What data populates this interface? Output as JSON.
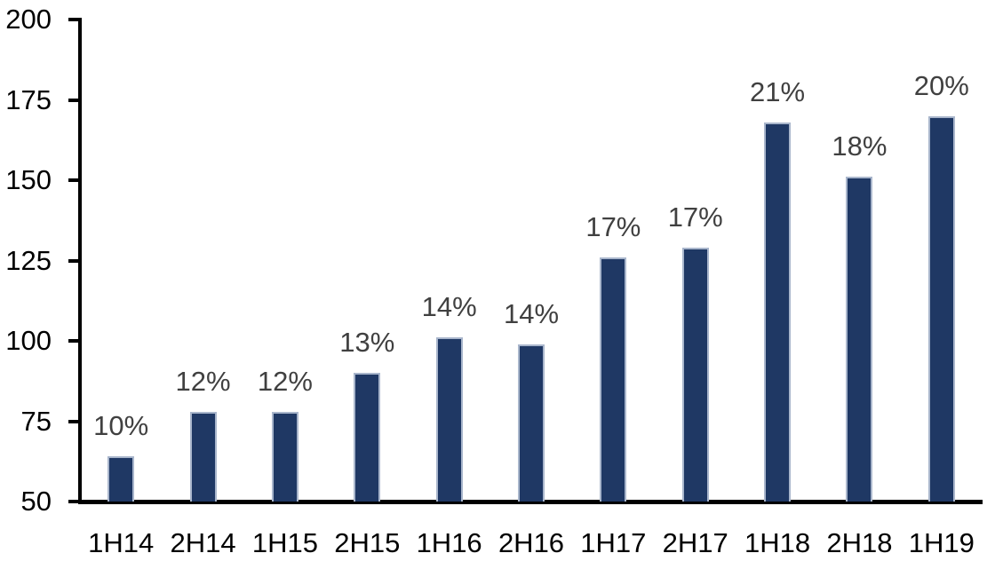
{
  "chart_data": {
    "type": "bar",
    "title": "",
    "xlabel": "",
    "ylabel": "",
    "categories": [
      "1H14",
      "2H14",
      "1H15",
      "2H15",
      "1H16",
      "2H16",
      "1H17",
      "2H17",
      "1H18",
      "2H18",
      "1H19"
    ],
    "values": [
      64,
      78,
      78,
      90,
      101,
      99,
      126,
      129,
      168,
      151,
      170
    ],
    "bar_labels": [
      "10%",
      "12%",
      "12%",
      "13%",
      "14%",
      "14%",
      "17%",
      "17%",
      "21%",
      "18%",
      "20%"
    ],
    "ylim": [
      50,
      200
    ],
    "yticks": [
      200,
      175,
      150,
      125,
      100,
      75,
      50
    ],
    "grid": false,
    "legend": null,
    "colors": {
      "bar_fill": "#1F3864",
      "bar_border": "#A9B6CC",
      "axis_line": "#000000",
      "tick_label_color": "#000000",
      "data_label_color": "#404040",
      "background": "#FFFFFF"
    }
  }
}
